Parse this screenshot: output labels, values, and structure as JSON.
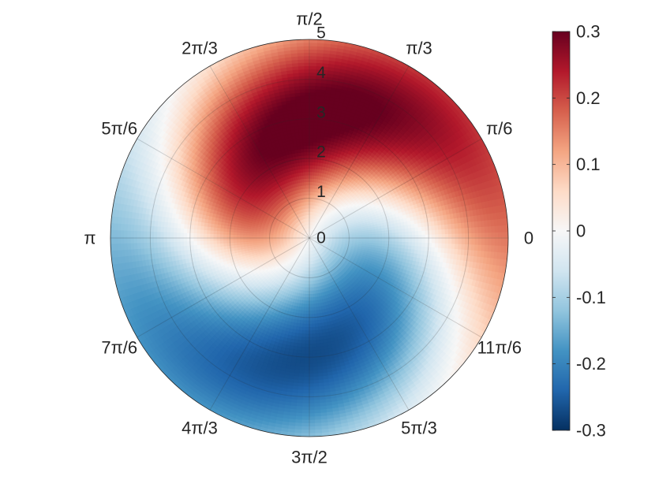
{
  "chart_data": {
    "type": "heatmap",
    "subtype": "polar-contour",
    "title": "",
    "radial_ticks": [
      "0",
      "1",
      "2",
      "3",
      "4",
      "5"
    ],
    "radial_values": [
      0,
      1,
      2,
      3,
      4,
      5
    ],
    "rlim": [
      0,
      5
    ],
    "angle_ticks": [
      {
        "label": "0",
        "theta_deg": 0
      },
      {
        "label": "π/6",
        "theta_deg": 30
      },
      {
        "label": "π/3",
        "theta_deg": 60
      },
      {
        "label": "π/2",
        "theta_deg": 90
      },
      {
        "label": "2π/3",
        "theta_deg": 120
      },
      {
        "label": "5π/6",
        "theta_deg": 150
      },
      {
        "label": "π",
        "theta_deg": 180
      },
      {
        "label": "7π/6",
        "theta_deg": 210
      },
      {
        "label": "4π/3",
        "theta_deg": 240
      },
      {
        "label": "3π/2",
        "theta_deg": 270
      },
      {
        "label": "5π/3",
        "theta_deg": 300
      },
      {
        "label": "11π/6",
        "theta_deg": 330
      }
    ],
    "field_features": [
      {
        "sign": "positive",
        "value": 0.3,
        "r": 3.0,
        "theta_deg": 90,
        "description": "maximum"
      },
      {
        "sign": "negative",
        "value": -0.25,
        "r": 3.0,
        "theta_deg": 270,
        "description": "minimum"
      }
    ],
    "field_pattern": "two-armed spiral dipole: positive lobe in upper half, negative lobe in lower half",
    "colorbar": {
      "min": -0.3,
      "max": 0.3,
      "ticks": [
        "-0.3",
        "-0.2",
        "-0.1",
        "0",
        "0.1",
        "0.2",
        "0.3"
      ],
      "tick_values": [
        -0.3,
        -0.2,
        -0.1,
        0,
        0.1,
        0.2,
        0.3
      ],
      "colormap": "red-blue diverging",
      "colors": [
        "#053061",
        "#2166ac",
        "#4393c3",
        "#92c5de",
        "#d1e5f0",
        "#f7f7f7",
        "#fddbc7",
        "#f4a582",
        "#d6604d",
        "#b2182b",
        "#67001f"
      ]
    },
    "grid": true
  }
}
